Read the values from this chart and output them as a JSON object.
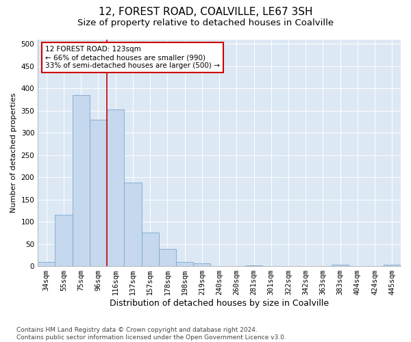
{
  "title": "12, FOREST ROAD, COALVILLE, LE67 3SH",
  "subtitle": "Size of property relative to detached houses in Coalville",
  "xlabel": "Distribution of detached houses by size in Coalville",
  "ylabel": "Number of detached properties",
  "categories": [
    "34sqm",
    "55sqm",
    "75sqm",
    "96sqm",
    "116sqm",
    "137sqm",
    "157sqm",
    "178sqm",
    "198sqm",
    "219sqm",
    "240sqm",
    "260sqm",
    "281sqm",
    "301sqm",
    "322sqm",
    "342sqm",
    "363sqm",
    "383sqm",
    "404sqm",
    "424sqm",
    "445sqm"
  ],
  "values": [
    10,
    115,
    385,
    330,
    353,
    188,
    75,
    38,
    10,
    6,
    0,
    0,
    2,
    0,
    0,
    0,
    0,
    3,
    0,
    0,
    3
  ],
  "bar_color": "#c5d8ed",
  "bar_edge_color": "#7aa8cc",
  "vline_color": "#cc0000",
  "annotation_text": "12 FOREST ROAD: 123sqm\n← 66% of detached houses are smaller (990)\n33% of semi-detached houses are larger (500) →",
  "annotation_box_color": "white",
  "annotation_box_edge": "#cc0000",
  "ylim": [
    0,
    510
  ],
  "yticks": [
    0,
    50,
    100,
    150,
    200,
    250,
    300,
    350,
    400,
    450,
    500
  ],
  "background_color": "#dde8f5",
  "footnote": "Contains HM Land Registry data © Crown copyright and database right 2024.\nContains public sector information licensed under the Open Government Licence v3.0.",
  "title_fontsize": 11,
  "subtitle_fontsize": 9.5,
  "xlabel_fontsize": 9,
  "ylabel_fontsize": 8,
  "tick_fontsize": 7.5,
  "annot_fontsize": 7.5,
  "footnote_fontsize": 6.5
}
